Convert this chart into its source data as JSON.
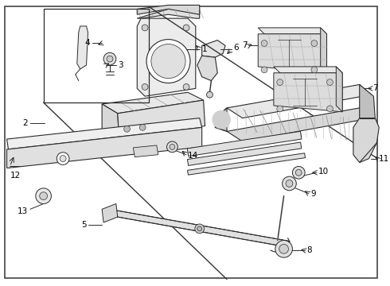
{
  "bg_color": "#ffffff",
  "line_color": "#2a2a2a",
  "figsize": [
    4.9,
    3.6
  ],
  "dpi": 100,
  "font_size": 7.5
}
